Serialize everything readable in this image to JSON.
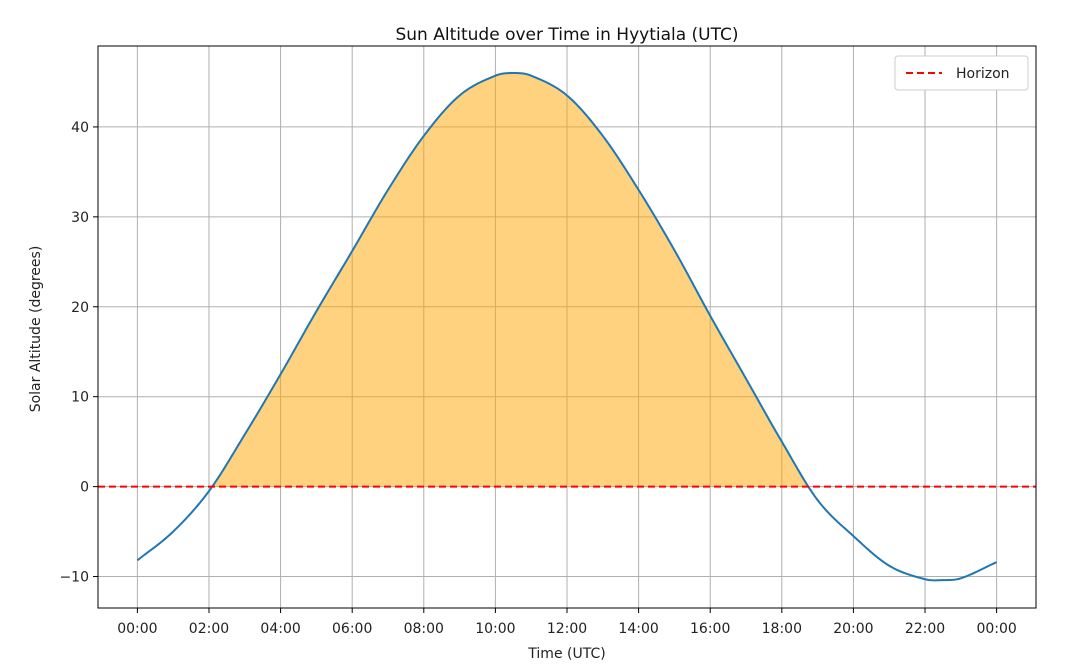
{
  "chart_data": {
    "type": "line",
    "title": "Sun Altitude over Time in Hyytiala (UTC)",
    "xlabel": "Time (UTC)",
    "ylabel": "Solar Altitude (degrees)",
    "x_unit": "hours since 00:00 UTC",
    "xlim": [
      -1.1,
      25.1
    ],
    "ylim": [
      -13.5,
      49
    ],
    "x_ticks": [
      0,
      2,
      4,
      6,
      8,
      10,
      12,
      14,
      16,
      18,
      20,
      22,
      24
    ],
    "x_tick_labels": [
      "00:00",
      "02:00",
      "04:00",
      "06:00",
      "08:00",
      "10:00",
      "12:00",
      "14:00",
      "16:00",
      "18:00",
      "20:00",
      "22:00",
      "00:00"
    ],
    "y_ticks": [
      -10,
      0,
      10,
      20,
      30,
      40
    ],
    "y_tick_labels": [
      "−10",
      "0",
      "10",
      "20",
      "30",
      "40"
    ],
    "grid": true,
    "legend": {
      "placement": "top-right",
      "entries": [
        "Horizon"
      ]
    },
    "colors": {
      "series": "#1f77b4",
      "horizon": "#ff0000",
      "fill": "#ffa500"
    },
    "horizon_y": 0,
    "series": [
      {
        "points": [
          [
            0,
            -8.2
          ],
          [
            1,
            -5.0
          ],
          [
            2,
            -0.5
          ],
          [
            3,
            5.8
          ],
          [
            4,
            12.5
          ],
          [
            5,
            19.5
          ],
          [
            6,
            26.2
          ],
          [
            7,
            33.0
          ],
          [
            8,
            39.0
          ],
          [
            9,
            43.5
          ],
          [
            10,
            45.7
          ],
          [
            10.5,
            46.0
          ],
          [
            11,
            45.7
          ],
          [
            12,
            43.5
          ],
          [
            13,
            39.0
          ],
          [
            14,
            33.0
          ],
          [
            15,
            26.3
          ],
          [
            16,
            19.0
          ],
          [
            17,
            12.0
          ],
          [
            18,
            5.0
          ],
          [
            19,
            -1.5
          ],
          [
            20,
            -5.5
          ],
          [
            21,
            -8.8
          ],
          [
            22,
            -10.3
          ],
          [
            22.5,
            -10.4
          ],
          [
            23,
            -10.2
          ],
          [
            24,
            -8.4
          ]
        ]
      }
    ]
  }
}
